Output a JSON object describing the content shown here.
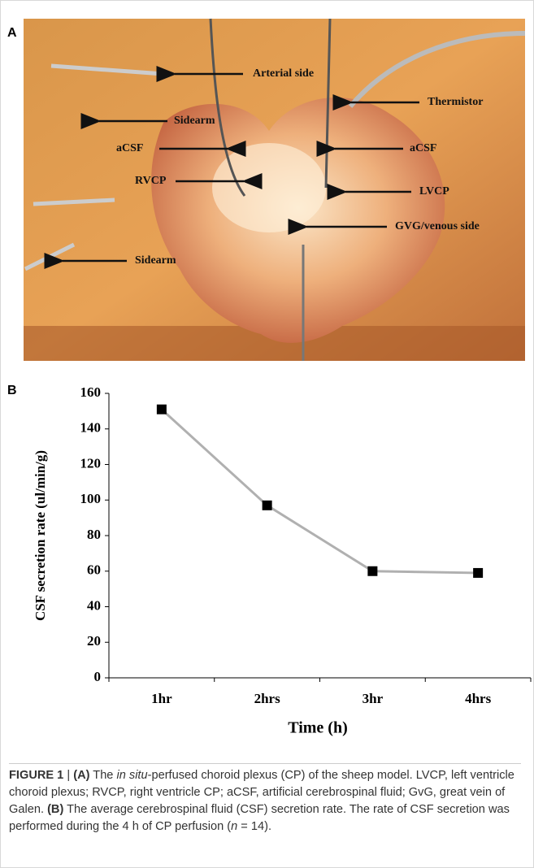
{
  "panel_a": {
    "label": "A",
    "annotations": [
      "Arterial side",
      "Thermistor",
      "Sidearm",
      "aCSF",
      "aCSF",
      "RVCP",
      "LVCP",
      "GVG/venous side",
      "Sidearm"
    ]
  },
  "chart_data": {
    "type": "line",
    "panel_label": "B",
    "x_label": "Time (h)",
    "y_label": "CSF  secretion rate (ul/min/g)",
    "categories": [
      "1hr",
      "2hrs",
      "3hr",
      "4hrs"
    ],
    "values": [
      151,
      97,
      60,
      59
    ],
    "line_color": "#b0b0b0",
    "marker_color": "#000000",
    "ylim": [
      0,
      160
    ],
    "yticks": [
      0,
      20,
      40,
      60,
      80,
      100,
      120,
      140,
      160
    ]
  },
  "caption": [
    {
      "text": "FIGURE 1",
      "style": "bold"
    },
    {
      "text": " | ",
      "style": "plain"
    },
    {
      "text": "(A)",
      "style": "bold"
    },
    {
      "text": " The ",
      "style": "plain"
    },
    {
      "text": "in situ",
      "style": "italic"
    },
    {
      "text": "-perfused choroid plexus (CP) of the sheep model. LVCP, left ventricle choroid plexus; RVCP, right ventricle CP; aCSF, artificial cerebrospinal fluid; GvG, great vein of Galen. ",
      "style": "plain"
    },
    {
      "text": "(B)",
      "style": "bold"
    },
    {
      "text": " The average cerebrospinal fluid (CSF) secretion rate. The rate of CSF secretion was performed during the 4 h of CP perfusion (",
      "style": "plain"
    },
    {
      "text": "n",
      "style": "italic"
    },
    {
      "text": " = 14).",
      "style": "plain"
    }
  ]
}
